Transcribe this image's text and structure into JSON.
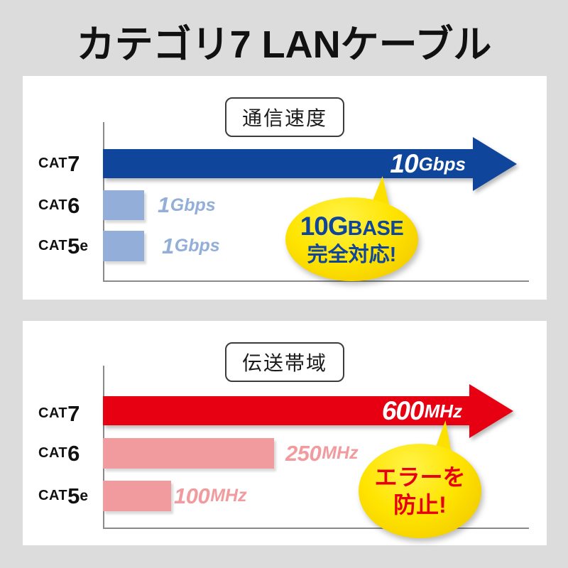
{
  "page": {
    "title": "カテゴリ7 LANケーブル"
  },
  "colors": {
    "background": "#dcdcdc",
    "cat7_speed": "#10459c",
    "cat6_speed": "#93afd9",
    "speed_value_text": "#93afd9",
    "cat7_band": "#e60012",
    "cat6_band": "#f29b9f",
    "band_value_text": "#f29b9f",
    "bubble_yellow": "#ffe400",
    "bubble_text_speed": "#10459c",
    "bubble_text_band": "#e60012"
  },
  "charts": [
    {
      "title": "通信速度",
      "rows": [
        {
          "label_prefix": "CAT",
          "label_num": "7",
          "label_suffix": "",
          "value_num": "10",
          "value_unit": "Gbps"
        },
        {
          "label_prefix": "CAT",
          "label_num": "6",
          "label_suffix": "",
          "value_num": "1",
          "value_unit": "Gbps"
        },
        {
          "label_prefix": "CAT",
          "label_num": "5",
          "label_suffix": "e",
          "value_num": "1",
          "value_unit": "Gbps"
        }
      ],
      "bubble": {
        "line1_strong": "10G",
        "line1_rest": "BASE",
        "line2": "完全対応!"
      }
    },
    {
      "title": "伝送帯域",
      "rows": [
        {
          "label_prefix": "CAT",
          "label_num": "7",
          "label_suffix": "",
          "value_num": "600",
          "value_unit": "MHz"
        },
        {
          "label_prefix": "CAT",
          "label_num": "6",
          "label_suffix": "",
          "value_num": "250",
          "value_unit": "MHz"
        },
        {
          "label_prefix": "CAT",
          "label_num": "5",
          "label_suffix": "e",
          "value_num": "100",
          "value_unit": "MHz"
        }
      ],
      "bubble": {
        "line1": "エラーを",
        "line2": "防止!"
      }
    }
  ],
  "chart_data": [
    {
      "type": "bar",
      "orientation": "horizontal",
      "title": "通信速度",
      "categories": [
        "CAT7",
        "CAT6",
        "CAT5e"
      ],
      "values": [
        10,
        1,
        1
      ],
      "unit": "Gbps",
      "value_labels": [
        "10Gbps",
        "1Gbps",
        "1Gbps"
      ],
      "xlim": [
        0,
        10
      ],
      "highlight_category": "CAT7",
      "highlight_style": "arrow",
      "annotation": "10GBASE完全対応!",
      "grid": false,
      "legend": false
    },
    {
      "type": "bar",
      "orientation": "horizontal",
      "title": "伝送帯域",
      "categories": [
        "CAT7",
        "CAT6",
        "CAT5e"
      ],
      "values": [
        600,
        250,
        100
      ],
      "unit": "MHz",
      "value_labels": [
        "600MHz",
        "250MHz",
        "100MHz"
      ],
      "xlim": [
        0,
        600
      ],
      "highlight_category": "CAT7",
      "highlight_style": "arrow",
      "annotation": "エラーを防止!",
      "grid": false,
      "legend": false
    }
  ]
}
